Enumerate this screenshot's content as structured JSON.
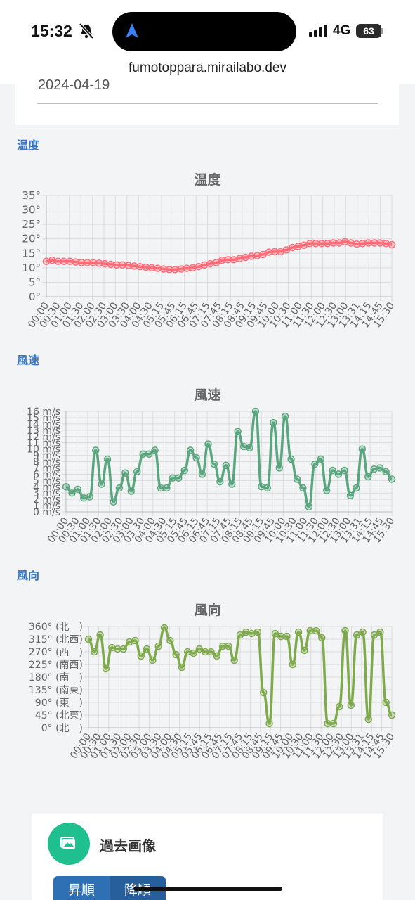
{
  "status": {
    "time": "15:32",
    "network": "4G",
    "battery": "63",
    "url": "fumotoppara.mirailabo.dev"
  },
  "date_field": {
    "value": "2024-04-19"
  },
  "x_ticks": [
    "00:00",
    "00:30",
    "01:00",
    "01:30",
    "02:00",
    "02:30",
    "03:00",
    "03:30",
    "04:00",
    "04:30",
    "05:15",
    "05:45",
    "06:15",
    "06:45",
    "07:15",
    "07:45",
    "08:15",
    "08:45",
    "09:15",
    "09:45",
    "10:00",
    "10:30",
    "11:00",
    "11:30",
    "12:00",
    "12:30",
    "13:00",
    "13:31",
    "14:15",
    "14:45",
    "15:30"
  ],
  "sections": {
    "temperature": {
      "label": "温度"
    },
    "wind_speed": {
      "label": "風速"
    },
    "wind_direction": {
      "label": "風向"
    }
  },
  "past_images": {
    "title": "過去画像",
    "asc_label": "昇順",
    "desc_label": "降順"
  },
  "chart_data": [
    {
      "type": "line",
      "title": "温度",
      "ylim": [
        0,
        35
      ],
      "yticks": [
        "0°",
        "5°",
        "10°",
        "15°",
        "20°",
        "25°",
        "30°",
        "35°"
      ],
      "color": "#ff6b78",
      "values": [
        12.2,
        12.6,
        12.2,
        12.2,
        12.2,
        12.0,
        11.8,
        11.8,
        11.8,
        11.6,
        11.4,
        11.2,
        11.0,
        11.0,
        10.8,
        10.6,
        10.4,
        10.2,
        10.0,
        9.8,
        9.6,
        9.4,
        9.4,
        9.6,
        9.8,
        10.0,
        10.4,
        11.0,
        11.4,
        11.8,
        12.6,
        12.8,
        12.8,
        13.2,
        13.6,
        14.0,
        14.2,
        14.6,
        15.4,
        15.6,
        15.6,
        16.2,
        17.0,
        17.4,
        17.8,
        18.4,
        18.4,
        18.4,
        18.4,
        18.6,
        18.6,
        19.0,
        18.6,
        18.2,
        18.4,
        18.6,
        18.6,
        18.6,
        18.4,
        18.0
      ]
    },
    {
      "type": "line",
      "title": "風速",
      "ylim": [
        0,
        16
      ],
      "yticks": [
        "0 m/s",
        "1 m/s",
        "2 m/s",
        "3 m/s",
        "4 m/s",
        "5 m/s",
        "6 m/s",
        "7 m/s",
        "8 m/s",
        "9 m/s",
        "10 m/s",
        "11 m/s",
        "12 m/s",
        "13 m/s",
        "14 m/s",
        "15 m/s",
        "16 m/s"
      ],
      "color": "#5aa67e",
      "values": [
        4.0,
        3.0,
        3.6,
        2.2,
        2.4,
        9.8,
        4.4,
        8.4,
        1.6,
        3.8,
        6.2,
        3.3,
        6.4,
        9.2,
        9.2,
        9.8,
        3.8,
        3.8,
        5.4,
        5.4,
        6.6,
        9.8,
        8.6,
        6.0,
        10.8,
        7.6,
        4.8,
        7.4,
        4.4,
        12.8,
        10.4,
        10.2,
        16.0,
        4.0,
        3.8,
        14.2,
        7.0,
        15.2,
        8.4,
        5.2,
        3.8,
        0.8,
        7.6,
        8.4,
        3.4,
        6.6,
        6.0,
        6.6,
        2.6,
        3.8,
        10.0,
        5.6,
        6.8,
        7.0,
        6.4,
        5.2
      ]
    },
    {
      "type": "line",
      "title": "風向",
      "ylim": [
        0,
        360
      ],
      "yticks": [
        "0° (北　)",
        "45° (北東)",
        "90° (東　)",
        "135° (南東)",
        "180° (南　)",
        "225° (南西)",
        "270° (西　)",
        "315° (北西)",
        "360° (北　)"
      ],
      "color": "#7faa4c",
      "values": [
        315,
        270,
        330,
        210,
        285,
        280,
        280,
        305,
        310,
        255,
        280,
        240,
        290,
        355,
        310,
        260,
        215,
        270,
        265,
        280,
        270,
        270,
        255,
        290,
        290,
        240,
        330,
        340,
        335,
        340,
        125,
        15,
        335,
        325,
        325,
        225,
        340,
        275,
        345,
        345,
        320,
        15,
        15,
        75,
        345,
        80,
        330,
        340,
        30,
        330,
        340,
        90,
        45
      ]
    }
  ]
}
